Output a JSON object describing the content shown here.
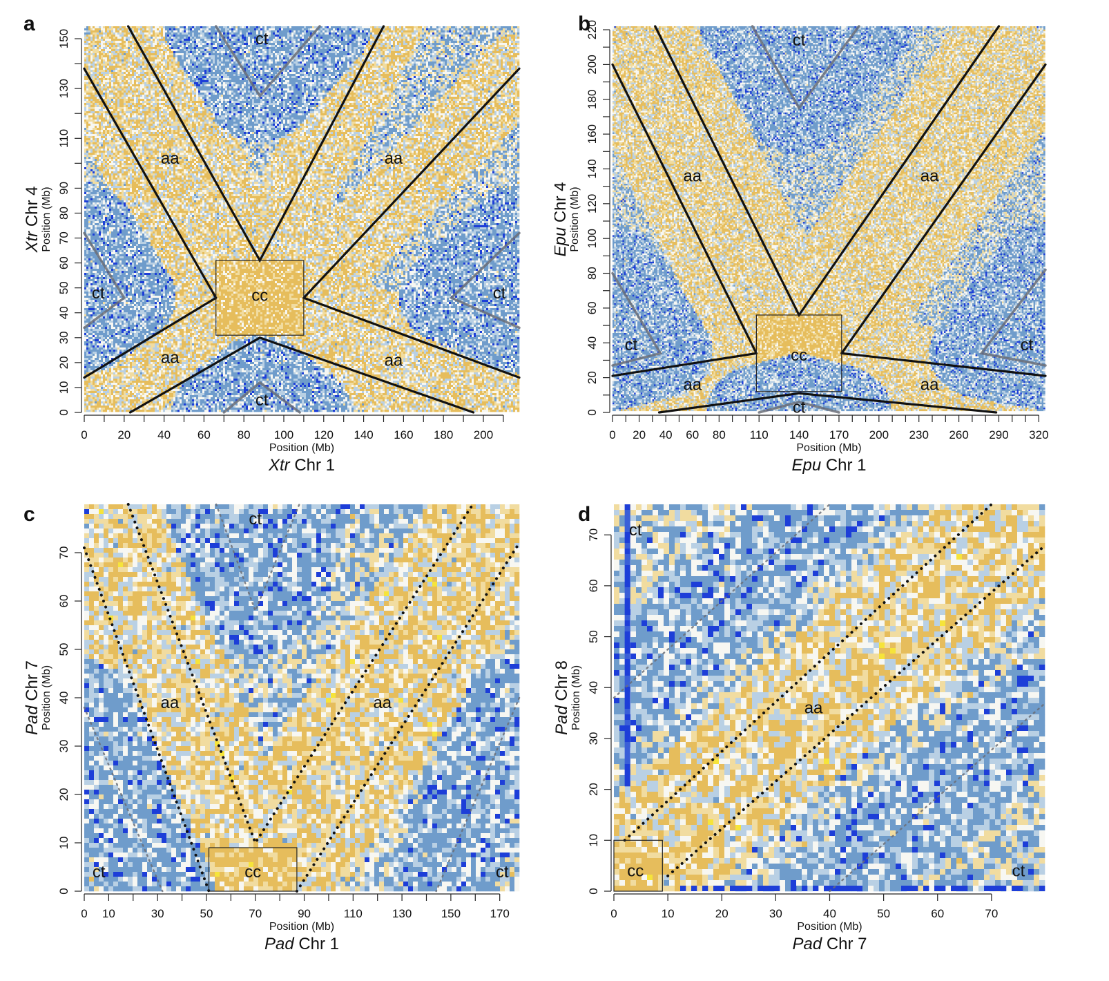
{
  "figure": {
    "colors": {
      "yellow": "#e6bd5c",
      "light_yellow": "#f1dca0",
      "white": "#f7f7f2",
      "light_blue": "#b9d0e4",
      "mid_blue": "#6f9ccb",
      "deep_blue": "#1d3ed8",
      "bright_yellow": "#f6e43a",
      "boundary_line": "#111111",
      "ct_line": "#6b6f78"
    }
  },
  "chart_data": [
    {
      "panel": "a",
      "type": "heatmap",
      "x_species": "Xtr",
      "x_chr": "Chr 1",
      "y_species": "Xtr",
      "y_chr": "Chr 4",
      "xlabel": "Position (Mb)",
      "ylabel": "Position (Mb)",
      "xlim": [
        0,
        218
      ],
      "ylim": [
        0,
        155
      ],
      "x_ticks": [
        0,
        10,
        20,
        30,
        40,
        50,
        60,
        70,
        80,
        90,
        100,
        110,
        120,
        130,
        140,
        150,
        160,
        170,
        180,
        190,
        200,
        210
      ],
      "x_tick_labels": [
        "0",
        "20",
        "40",
        "60",
        "80",
        "100",
        "120",
        "140",
        "160",
        "180",
        "200"
      ],
      "y_ticks": [
        0,
        10,
        20,
        30,
        40,
        50,
        60,
        70,
        80,
        90,
        100,
        110,
        120,
        130,
        140,
        150
      ],
      "y_tick_labels": [
        "0",
        "10",
        "20",
        "30",
        "40",
        "50",
        "60",
        "70",
        "80",
        "90",
        "110",
        "130",
        "150"
      ],
      "centromere_x": 88,
      "centromere_y": 46,
      "cc_box": {
        "x": [
          66,
          110
        ],
        "y": [
          31,
          61
        ]
      },
      "boundary_lines": [
        {
          "style": "solid",
          "points": [
            [
              0,
              138
            ],
            [
              66,
              46
            ]
          ]
        },
        {
          "style": "solid",
          "points": [
            [
              22,
              155
            ],
            [
              88,
              61
            ],
            [
              150,
              155
            ]
          ]
        },
        {
          "style": "solid",
          "points": [
            [
              110,
              46
            ],
            [
              218,
              138
            ]
          ]
        },
        {
          "style": "solid",
          "points": [
            [
              0,
              14
            ],
            [
              66,
              46
            ]
          ]
        },
        {
          "style": "solid",
          "points": [
            [
              23,
              0
            ],
            [
              88,
              30
            ],
            [
              195,
              0
            ]
          ]
        },
        {
          "style": "solid",
          "points": [
            [
              110,
              46
            ],
            [
              218,
              14
            ]
          ]
        }
      ],
      "ct_lines": [
        {
          "points": [
            [
              66,
              155
            ],
            [
              88,
              127
            ],
            [
              118,
              155
            ]
          ]
        },
        {
          "points": [
            [
              0,
              72
            ],
            [
              20,
              46
            ],
            [
              0,
              34
            ]
          ]
        },
        {
          "points": [
            [
              218,
              72
            ],
            [
              184,
              46
            ],
            [
              218,
              34
            ]
          ]
        },
        {
          "points": [
            [
              70,
              0
            ],
            [
              88,
              12
            ],
            [
              108,
              0
            ]
          ]
        }
      ],
      "labels": [
        {
          "text": "aa",
          "x": 43,
          "y": 102
        },
        {
          "text": "aa",
          "x": 155,
          "y": 102
        },
        {
          "text": "aa",
          "x": 43,
          "y": 22
        },
        {
          "text": "aa",
          "x": 155,
          "y": 21
        },
        {
          "text": "cc",
          "x": 88,
          "y": 47
        },
        {
          "text": "ct",
          "x": 89,
          "y": 150
        },
        {
          "text": "ct",
          "x": 7,
          "y": 48
        },
        {
          "text": "ct",
          "x": 208,
          "y": 48
        },
        {
          "text": "ct",
          "x": 89,
          "y": 5
        }
      ]
    },
    {
      "panel": "b",
      "type": "heatmap",
      "x_species": "Epu",
      "x_chr": "Chr 1",
      "y_species": "Epu",
      "y_chr": "Chr 4",
      "xlabel": "Position (Mb)",
      "ylabel": "Position (Mb)",
      "xlim": [
        0,
        325
      ],
      "ylim": [
        0,
        222
      ],
      "x_ticks": [
        0,
        10,
        20,
        30,
        40,
        50,
        60,
        70,
        80,
        90,
        100,
        110,
        120,
        130,
        140,
        150,
        160,
        170,
        180,
        190,
        200,
        210,
        220,
        230,
        240,
        250,
        260,
        270,
        280,
        290,
        300,
        310,
        320
      ],
      "x_tick_labels": [
        "0",
        "20",
        "40",
        "60",
        "80",
        "110",
        "140",
        "170",
        "200",
        "230",
        "260",
        "290",
        "320"
      ],
      "y_ticks": [
        0,
        10,
        20,
        30,
        40,
        50,
        60,
        70,
        80,
        90,
        100,
        110,
        120,
        130,
        140,
        150,
        160,
        170,
        180,
        190,
        200,
        210,
        220
      ],
      "y_tick_labels": [
        "0",
        "20",
        "40",
        "60",
        "80",
        "100",
        "120",
        "140",
        "160",
        "180",
        "200",
        "220"
      ],
      "centromere_x": 140,
      "centromere_y": 34,
      "cc_box": {
        "x": [
          108,
          172
        ],
        "y": [
          12,
          56
        ]
      },
      "boundary_lines": [
        {
          "style": "solid",
          "points": [
            [
              0,
              200
            ],
            [
              108,
              34
            ]
          ]
        },
        {
          "style": "solid",
          "points": [
            [
              32,
              222
            ],
            [
              140,
              56
            ],
            [
              290,
              222
            ]
          ]
        },
        {
          "style": "solid",
          "points": [
            [
              172,
              34
            ],
            [
              325,
              200
            ]
          ]
        },
        {
          "style": "solid",
          "points": [
            [
              0,
              21
            ],
            [
              108,
              34
            ]
          ]
        },
        {
          "style": "solid",
          "points": [
            [
              35,
              0
            ],
            [
              140,
              11
            ],
            [
              288,
              0
            ]
          ]
        },
        {
          "style": "solid",
          "points": [
            [
              172,
              34
            ],
            [
              325,
              21
            ]
          ]
        }
      ],
      "ct_lines": [
        {
          "points": [
            [
              105,
              222
            ],
            [
              140,
              175
            ],
            [
              185,
              222
            ]
          ]
        },
        {
          "points": [
            [
              0,
              80
            ],
            [
              36,
              34
            ],
            [
              0,
              27
            ]
          ]
        },
        {
          "points": [
            [
              325,
              82
            ],
            [
              277,
              34
            ],
            [
              325,
              27
            ]
          ]
        },
        {
          "points": [
            [
              110,
              0
            ],
            [
              140,
              6
            ],
            [
              170,
              0
            ]
          ]
        }
      ],
      "labels": [
        {
          "text": "aa",
          "x": 60,
          "y": 136
        },
        {
          "text": "aa",
          "x": 238,
          "y": 136
        },
        {
          "text": "aa",
          "x": 60,
          "y": 16
        },
        {
          "text": "aa",
          "x": 238,
          "y": 16
        },
        {
          "text": "cc",
          "x": 140,
          "y": 33
        },
        {
          "text": "ct",
          "x": 140,
          "y": 214
        },
        {
          "text": "ct",
          "x": 14,
          "y": 39
        },
        {
          "text": "ct",
          "x": 311,
          "y": 39
        },
        {
          "text": "ct",
          "x": 140,
          "y": 3
        }
      ]
    },
    {
      "panel": "c",
      "type": "heatmap",
      "x_species": "Pad",
      "x_chr": "Chr 1",
      "y_species": "Pad",
      "y_chr": "Chr 7",
      "xlabel": "Position (Mb)",
      "ylabel": "Position (Mb)",
      "xlim": [
        0,
        178
      ],
      "ylim": [
        0,
        80
      ],
      "x_ticks": [
        0,
        10,
        20,
        30,
        40,
        50,
        60,
        70,
        80,
        90,
        100,
        110,
        120,
        130,
        140,
        150,
        160,
        170
      ],
      "x_tick_labels": [
        "0",
        "10",
        "30",
        "50",
        "70",
        "90",
        "110",
        "130",
        "150",
        "170"
      ],
      "y_ticks": [
        0,
        10,
        20,
        30,
        40,
        50,
        60,
        70
      ],
      "y_tick_labels": [
        "0",
        "10",
        "20",
        "30",
        "40",
        "50",
        "60",
        "70"
      ],
      "centromere_x": 70,
      "centromere_y": 5,
      "cc_box": {
        "x": [
          51,
          87
        ],
        "y": [
          0,
          9
        ]
      },
      "boundary_lines": [
        {
          "style": "dotted",
          "points": [
            [
              0,
              71
            ],
            [
              51,
              0
            ]
          ]
        },
        {
          "style": "dotted",
          "points": [
            [
              18,
              80
            ],
            [
              70,
              10
            ],
            [
              159,
              80
            ]
          ]
        },
        {
          "style": "dotted",
          "points": [
            [
              87,
              0
            ],
            [
              178,
              72
            ]
          ]
        }
      ],
      "ct_lines": [
        {
          "points": [
            [
              54,
              80
            ],
            [
              70,
              58
            ],
            [
              88,
              80
            ]
          ]
        },
        {
          "points": [
            [
              0,
              38
            ],
            [
              32,
              0
            ]
          ]
        },
        {
          "points": [
            [
              178,
              40
            ],
            [
              144,
              0
            ]
          ]
        }
      ],
      "labels": [
        {
          "text": "aa",
          "x": 35,
          "y": 39
        },
        {
          "text": "aa",
          "x": 122,
          "y": 39
        },
        {
          "text": "cc",
          "x": 69,
          "y": 4
        },
        {
          "text": "ct",
          "x": 70,
          "y": 77
        },
        {
          "text": "ct",
          "x": 6,
          "y": 4
        },
        {
          "text": "ct",
          "x": 171,
          "y": 4
        }
      ]
    },
    {
      "panel": "d",
      "type": "heatmap",
      "x_species": "Pad",
      "x_chr": "Chr 7",
      "y_species": "Pad",
      "y_chr": "Chr 8",
      "xlabel": "Position (Mb)",
      "ylabel": "Position (Mb)",
      "xlim": [
        0,
        80
      ],
      "ylim": [
        0,
        76
      ],
      "x_ticks": [
        0,
        10,
        20,
        30,
        40,
        50,
        60,
        70
      ],
      "x_tick_labels": [
        "0",
        "10",
        "20",
        "30",
        "40",
        "50",
        "60",
        "70"
      ],
      "y_ticks": [
        0,
        10,
        20,
        30,
        40,
        50,
        60,
        70
      ],
      "y_tick_labels": [
        "0",
        "10",
        "20",
        "30",
        "40",
        "50",
        "60",
        "70"
      ],
      "centromere_x": 4,
      "centromere_y": 5,
      "cc_box": {
        "x": [
          0,
          9
        ],
        "y": [
          0,
          10
        ]
      },
      "boundary_lines": [
        {
          "style": "dotted",
          "points": [
            [
              2,
              10
            ],
            [
              70,
              76
            ]
          ]
        },
        {
          "style": "dotted",
          "points": [
            [
              10,
              3
            ],
            [
              80,
              68
            ]
          ]
        }
      ],
      "ct_lines": [
        {
          "points": [
            [
              0,
              38
            ],
            [
              40,
              76
            ]
          ]
        },
        {
          "points": [
            [
              40,
              0
            ],
            [
              80,
              37
            ]
          ]
        }
      ],
      "labels": [
        {
          "text": "aa",
          "x": 37,
          "y": 36
        },
        {
          "text": "cc",
          "x": 4,
          "y": 4
        },
        {
          "text": "ct",
          "x": 4,
          "y": 71
        },
        {
          "text": "ct",
          "x": 75,
          "y": 4
        }
      ]
    }
  ]
}
